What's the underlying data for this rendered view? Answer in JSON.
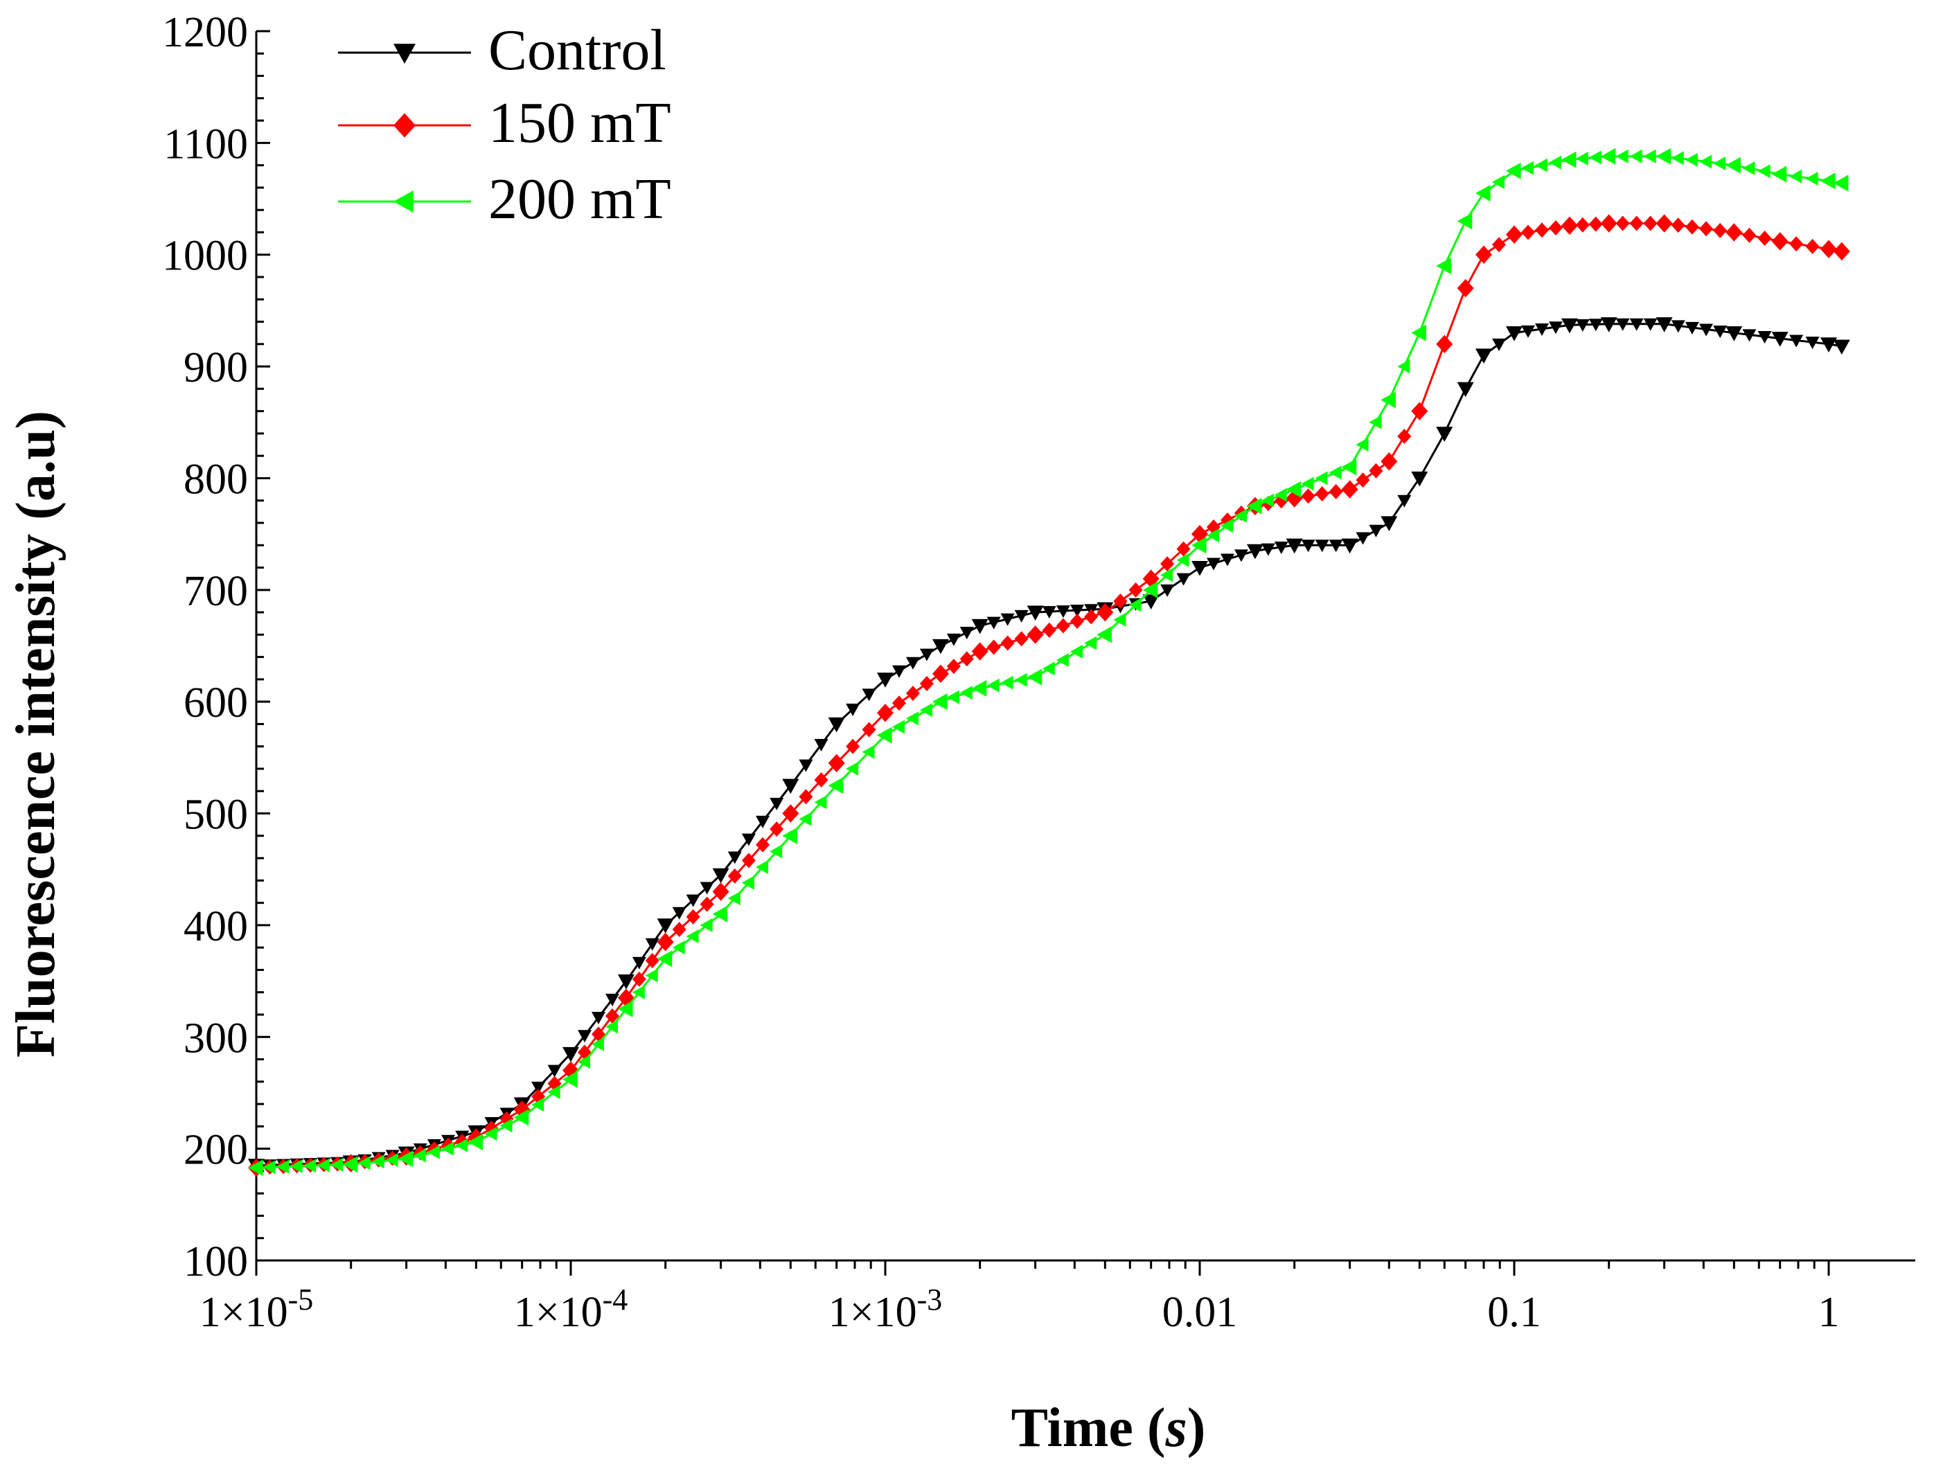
{
  "chart_data": {
    "type": "line",
    "title": "",
    "xlabel_main": "Time (",
    "xlabel_unit": "s",
    "xlabel_close": ")",
    "ylabel": "Fluorescence intensity (a.u)",
    "xscale": "log",
    "xlim": [
      1e-05,
      1.2
    ],
    "ylim": [
      100,
      1200
    ],
    "x_ticks": [
      {
        "value": 1e-05,
        "label": "1×10",
        "exp": "-5"
      },
      {
        "value": 0.0001,
        "label": "1×10",
        "exp": "-4"
      },
      {
        "value": 0.001,
        "label": "1×10",
        "exp": "-3"
      },
      {
        "value": 0.01,
        "label": "0.01",
        "exp": ""
      },
      {
        "value": 0.1,
        "label": "0.1",
        "exp": ""
      },
      {
        "value": 1,
        "label": "1",
        "exp": ""
      }
    ],
    "y_ticks": [
      {
        "value": 100,
        "label": "100"
      },
      {
        "value": 200,
        "label": "200"
      },
      {
        "value": 300,
        "label": "300"
      },
      {
        "value": 400,
        "label": "400"
      },
      {
        "value": 500,
        "label": "500"
      },
      {
        "value": 600,
        "label": "600"
      },
      {
        "value": 700,
        "label": "700"
      },
      {
        "value": 800,
        "label": "800"
      },
      {
        "value": 900,
        "label": "900"
      },
      {
        "value": 1000,
        "label": "1000"
      },
      {
        "value": 1100,
        "label": "1100"
      },
      {
        "value": 1200,
        "label": "1200"
      }
    ],
    "grid": false,
    "legend_position": "top-left",
    "x": [
      1e-05,
      2e-05,
      3e-05,
      5e-05,
      7e-05,
      0.0001,
      0.00015,
      0.0002,
      0.0003,
      0.0005,
      0.0007,
      0.001,
      0.0015,
      0.002,
      0.003,
      0.005,
      0.007,
      0.01,
      0.015,
      0.02,
      0.03,
      0.04,
      0.05,
      0.06,
      0.07,
      0.08,
      0.1,
      0.15,
      0.2,
      0.3,
      0.5,
      0.7,
      1.0,
      1.1
    ],
    "series": [
      {
        "name": "Control",
        "color": "#000000",
        "marker": "triangle-down",
        "values": [
          185,
          188,
          196,
          215,
          240,
          285,
          350,
          400,
          445,
          525,
          580,
          620,
          650,
          668,
          680,
          683,
          690,
          720,
          735,
          740,
          740,
          760,
          800,
          840,
          880,
          910,
          930,
          937,
          938,
          938,
          930,
          925,
          920,
          918
        ]
      },
      {
        "name": "150 mT",
        "color": "#ff0000",
        "marker": "diamond",
        "values": [
          183,
          187,
          193,
          210,
          235,
          270,
          335,
          385,
          430,
          500,
          545,
          590,
          625,
          645,
          660,
          680,
          710,
          750,
          775,
          782,
          790,
          815,
          860,
          920,
          970,
          1000,
          1018,
          1026,
          1028,
          1028,
          1020,
          1012,
          1005,
          1003
        ]
      },
      {
        "name": "200 mT",
        "color": "#00ff00",
        "marker": "triangle-left",
        "values": [
          183,
          186,
          191,
          206,
          228,
          262,
          325,
          370,
          410,
          480,
          525,
          570,
          600,
          612,
          622,
          660,
          700,
          740,
          775,
          790,
          810,
          870,
          930,
          990,
          1030,
          1055,
          1075,
          1085,
          1088,
          1088,
          1080,
          1072,
          1066,
          1064
        ]
      }
    ]
  }
}
